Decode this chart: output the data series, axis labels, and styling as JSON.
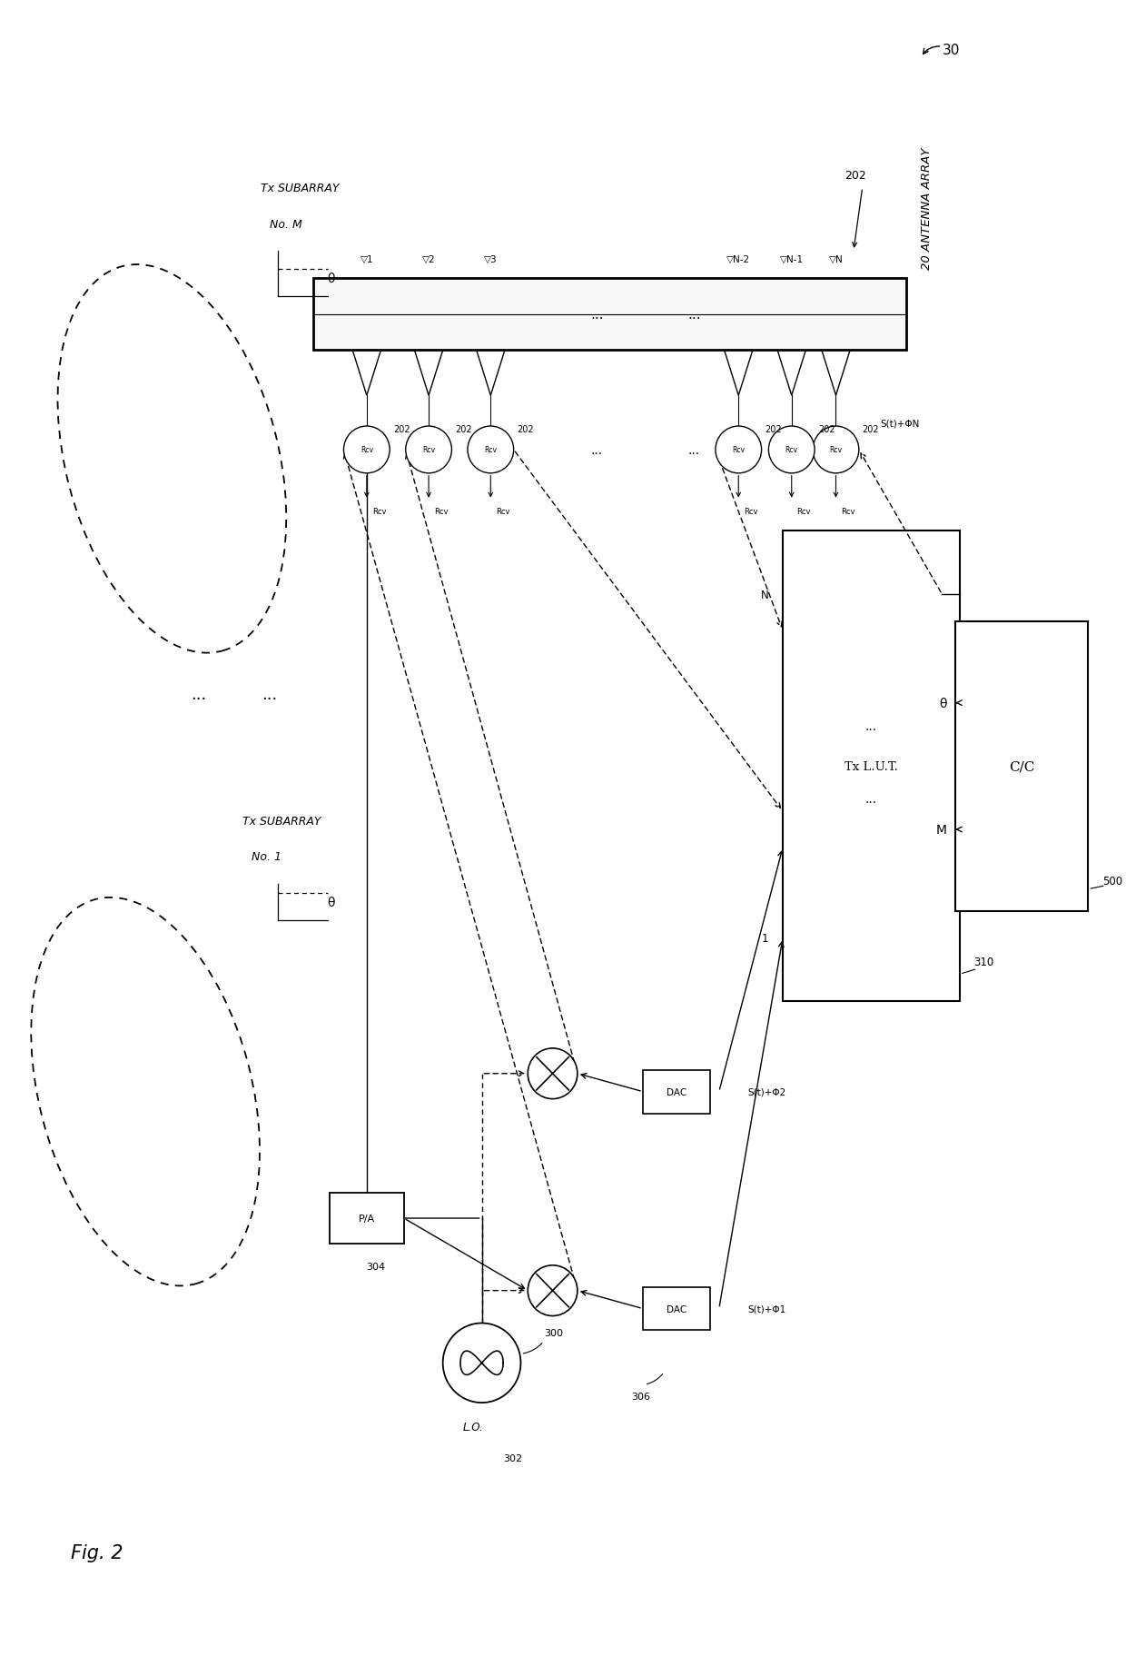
{
  "background_color": "#ffffff",
  "text_color": "#000000",
  "fig_label": "Fig. 2",
  "ref_30": "30",
  "antenna_array_label": "20 ANTENNA ARRAY",
  "ref_202": "202",
  "elements_right": [
    "▽N-2",
    "▽N-1",
    "▽N"
  ],
  "elements_left": [
    "▽1",
    "▽2",
    "▽3"
  ],
  "rcv_label": "Rcv",
  "pa_label": "P/A",
  "ref_304": "304",
  "dac_label": "DAC",
  "ref_306": "306",
  "lut_label": "Tx L.U.T.",
  "ref_310": "310",
  "cc_label": "C/C",
  "ref_500": "500",
  "lo_label": "L.O.",
  "ref_302": "302",
  "ref_300": "300",
  "signal_phi1": "S(t)+Φ1",
  "signal_phi2": "S(t)+Φ2",
  "signal_phiN": "S(t)+ΦN",
  "theta": "θ",
  "m_label": "M",
  "tx_m_line1": "Tx SUBARRAY",
  "tx_m_line2": "No. M",
  "tx_1_line1": "Tx SUBARRAY",
  "tx_1_line2": "No. 1",
  "dots": "..."
}
